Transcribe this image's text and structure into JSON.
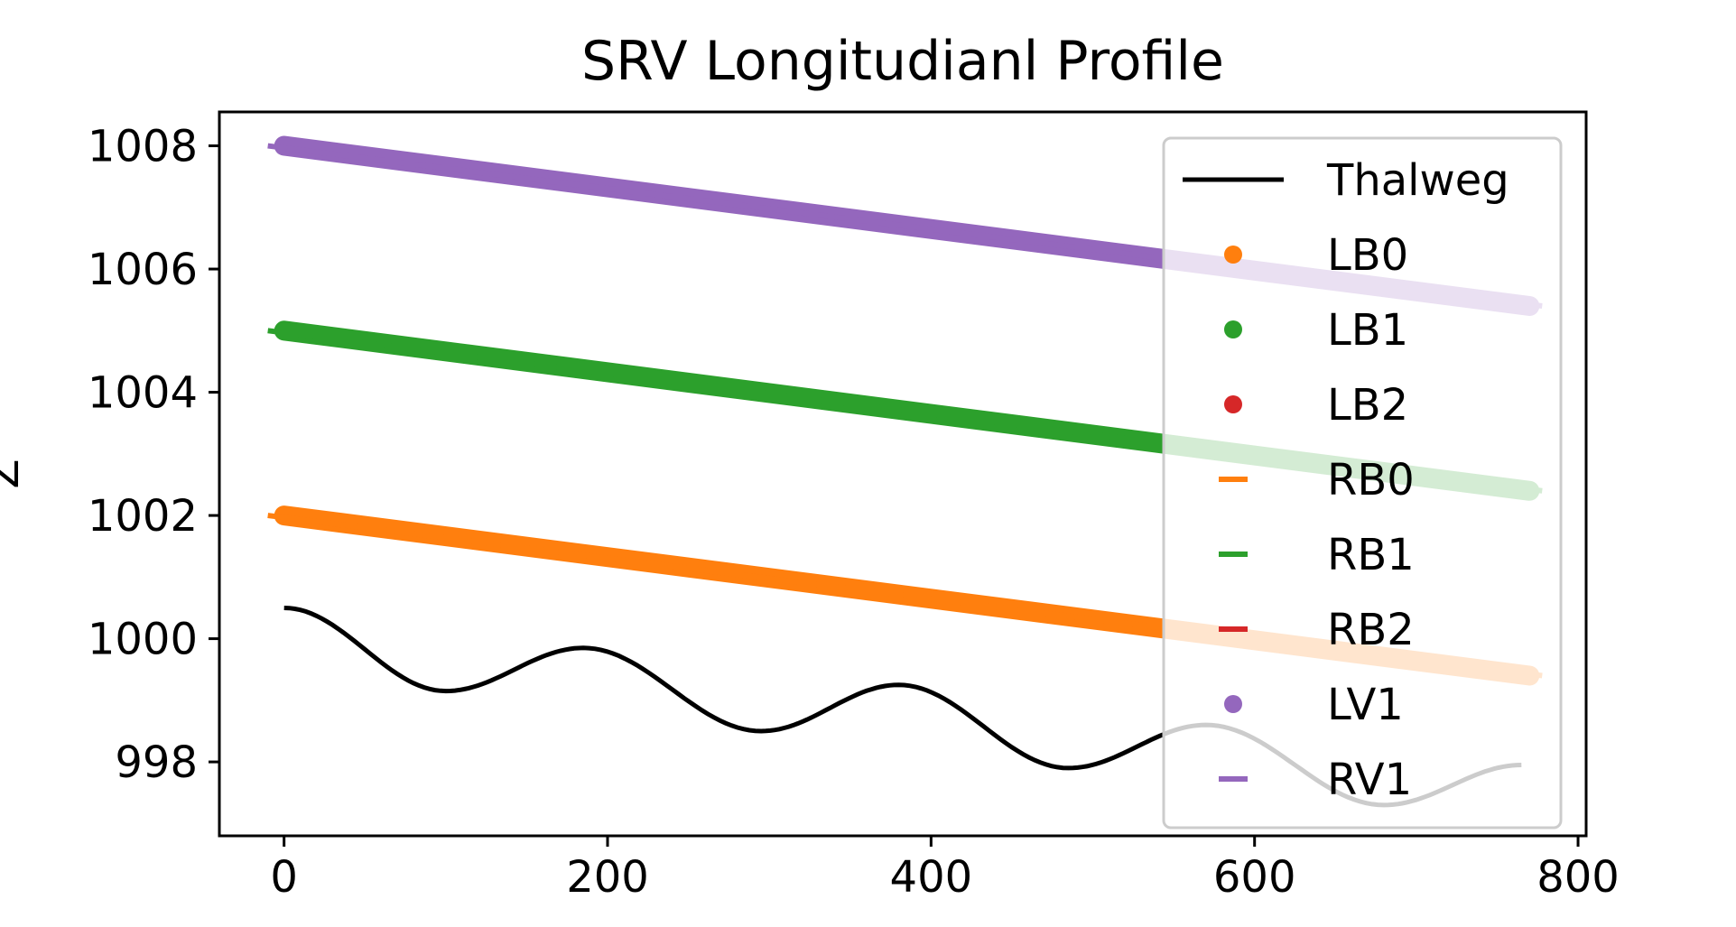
{
  "chart_data": {
    "type": "line",
    "title": "SRV Longitudianl Profile",
    "xlabel": "",
    "ylabel": "Z",
    "xlim": [
      -40,
      805
    ],
    "ylim": [
      996.8,
      1008.55
    ],
    "xticks": [
      0,
      200,
      400,
      600,
      800
    ],
    "yticks": [
      998,
      1000,
      1002,
      1004,
      1006,
      1008
    ],
    "grid": false,
    "legend": {
      "placement": "upper right",
      "alpha": 0.8
    },
    "thalweg": {
      "name": "Thalweg",
      "color": "#000000",
      "x": [
        0,
        100,
        185,
        295,
        380,
        485,
        570,
        680,
        765
      ],
      "y": [
        1000.5,
        999.15,
        999.85,
        998.5,
        999.25,
        997.9,
        998.6,
        997.3,
        997.95
      ]
    },
    "series": [
      {
        "name": "LB0",
        "marker": "dot",
        "color": "#ff7f0e",
        "x": [
          0,
          770
        ],
        "y": [
          1002.0,
          999.4
        ]
      },
      {
        "name": "LB1",
        "marker": "dot",
        "color": "#2ca02c",
        "x": [
          0,
          770
        ],
        "y": [
          1005.0,
          1002.4
        ]
      },
      {
        "name": "LB2",
        "marker": "dot",
        "color": "#d62728",
        "x": [],
        "y": []
      },
      {
        "name": "RB0",
        "marker": "dash",
        "color": "#ff7f0e",
        "x": [
          0,
          770
        ],
        "y": [
          1002.0,
          999.4
        ]
      },
      {
        "name": "RB1",
        "marker": "dash",
        "color": "#2ca02c",
        "x": [
          0,
          770
        ],
        "y": [
          1005.0,
          1002.4
        ]
      },
      {
        "name": "RB2",
        "marker": "dash",
        "color": "#d62728",
        "x": [],
        "y": []
      },
      {
        "name": "LV1",
        "marker": "dot",
        "color": "#9467bd",
        "x": [
          0,
          770
        ],
        "y": [
          1008.0,
          1005.4
        ]
      },
      {
        "name": "RV1",
        "marker": "dash",
        "color": "#9467bd",
        "x": [
          0,
          770
        ],
        "y": [
          1008.0,
          1005.4
        ]
      }
    ]
  }
}
